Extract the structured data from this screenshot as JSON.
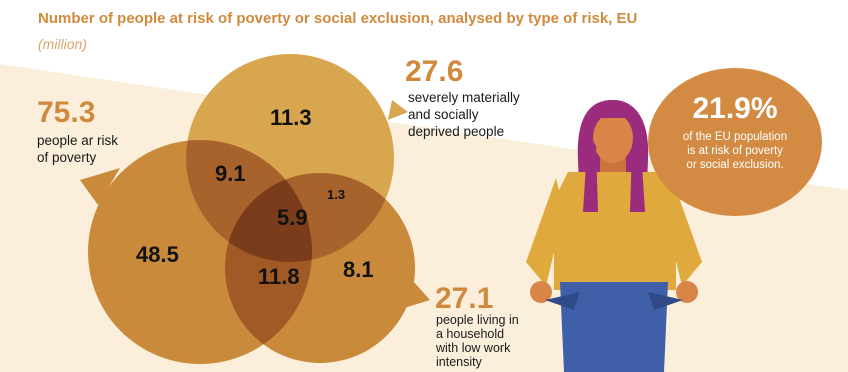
{
  "header": {
    "title": "Number of people at risk of poverty or social exclusion, analysed by type of risk, EU",
    "subtitle": "(million)"
  },
  "groups": {
    "poverty": {
      "value": "75.3",
      "lines": [
        "people ar risk",
        "of poverty"
      ]
    },
    "deprived": {
      "value": "27.6",
      "lines": [
        "severely materially",
        "and socially",
        "deprived people"
      ]
    },
    "low_work": {
      "value": "27.1",
      "lines": [
        "people living in",
        "a household",
        "with low work",
        "intensity"
      ]
    }
  },
  "venn": {
    "poverty_only": "48.5",
    "deprived_only": "11.3",
    "low_work_only": "8.1",
    "poverty_deprived": "9.1",
    "poverty_low_work": "11.8",
    "deprived_low_work": "1.3",
    "all_three": "5.9"
  },
  "badge": {
    "percent": "21.9%",
    "lines": [
      "of the EU population",
      "is at risk of poverty",
      "or social exclusion."
    ]
  },
  "colors": {
    "accent": "#d18a3d",
    "circle": "#c98a3c",
    "circle_light": "#d9a650",
    "overlap": "#a15a25",
    "center": "#7a3c1b",
    "background_band": "#fbefdc",
    "hair": "#9b2c7d",
    "jumper": "#e0a93e",
    "jeans": "#3f5fa8"
  },
  "icons": [
    "woman-illustration-icon"
  ]
}
